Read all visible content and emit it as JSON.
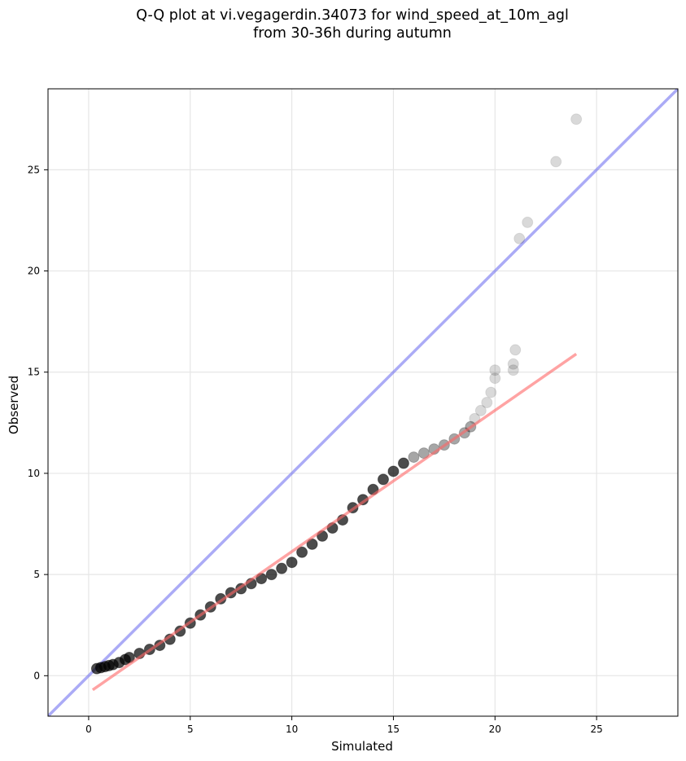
{
  "chart_data": {
    "type": "scatter",
    "title": "Q-Q plot at vi.vegagerdin.34073 for wind_speed_at_10m_agl\nfrom 30-36h during autumn",
    "xlabel": "Simulated",
    "ylabel": "Observed",
    "xlim": [
      -2,
      29
    ],
    "ylim": [
      -2,
      29
    ],
    "xticks": [
      0,
      5,
      10,
      15,
      20,
      25
    ],
    "yticks": [
      0,
      5,
      10,
      15,
      20,
      25
    ],
    "grid": true,
    "legend": "none",
    "series": [
      {
        "kind": "points",
        "color": "#000000",
        "points": [
          [
            0.4,
            0.35
          ],
          [
            0.6,
            0.4
          ],
          [
            0.8,
            0.45
          ],
          [
            1.0,
            0.5
          ],
          [
            1.2,
            0.55
          ],
          [
            1.5,
            0.65
          ],
          [
            1.8,
            0.8
          ],
          [
            2.0,
            0.9
          ],
          [
            2.5,
            1.1
          ],
          [
            3.0,
            1.3
          ],
          [
            3.5,
            1.5
          ],
          [
            4.0,
            1.8
          ],
          [
            4.5,
            2.2
          ],
          [
            5.0,
            2.6
          ],
          [
            5.5,
            3.0
          ],
          [
            6.0,
            3.4
          ],
          [
            6.5,
            3.8
          ],
          [
            7.0,
            4.1
          ],
          [
            7.5,
            4.3
          ],
          [
            8.0,
            4.55
          ],
          [
            8.5,
            4.8
          ],
          [
            9.0,
            5.0
          ],
          [
            9.5,
            5.3
          ],
          [
            10.0,
            5.6
          ],
          [
            10.5,
            6.1
          ],
          [
            11.0,
            6.5
          ],
          [
            11.5,
            6.9
          ],
          [
            12.0,
            7.3
          ],
          [
            12.5,
            7.7
          ],
          [
            13.0,
            8.3
          ],
          [
            13.5,
            8.7
          ],
          [
            14.0,
            9.2
          ],
          [
            14.5,
            9.7
          ],
          [
            15.0,
            10.1
          ],
          [
            15.5,
            10.5
          ],
          [
            16.0,
            10.8
          ],
          [
            16.5,
            11.0
          ],
          [
            17.0,
            11.2
          ],
          [
            17.5,
            11.4
          ],
          [
            18.0,
            11.7
          ],
          [
            18.5,
            12.0
          ],
          [
            18.8,
            12.3
          ],
          [
            19.0,
            12.7
          ],
          [
            19.3,
            13.1
          ],
          [
            19.6,
            13.5
          ],
          [
            19.8,
            14.0
          ],
          [
            20.0,
            14.7
          ],
          [
            20.0,
            15.1
          ],
          [
            20.9,
            15.1
          ],
          [
            20.9,
            15.4
          ],
          [
            21.0,
            16.1
          ],
          [
            21.2,
            21.6
          ],
          [
            21.6,
            22.4
          ],
          [
            23.0,
            25.4
          ],
          [
            24.0,
            27.5
          ]
        ]
      },
      {
        "name": "",
        "kind": "line",
        "color": "#ff6666",
        "points": [
          [
            0.2,
            -0.7
          ],
          [
            24.0,
            15.9
          ]
        ]
      },
      {
        "name": "",
        "kind": "line",
        "color": "#6666ee",
        "points": [
          [
            -2,
            -2
          ],
          [
            29,
            29
          ]
        ]
      }
    ]
  }
}
